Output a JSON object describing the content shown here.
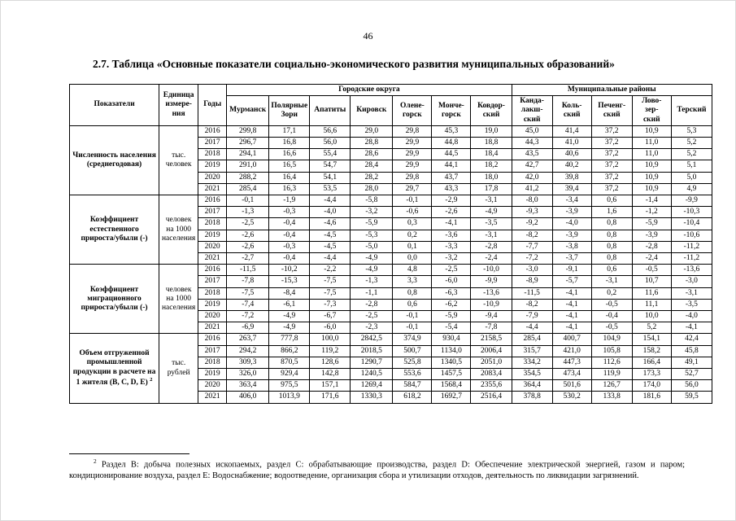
{
  "page": {
    "number": "46"
  },
  "title": "2.7. Таблица «Основные показатели социально-экономического развития муниципальных образований»",
  "table": {
    "headers": {
      "indicator": "Показатели",
      "unit": "Единица\nизмере-\nния",
      "year": "Годы",
      "group_urban": "Городские округа",
      "group_municipal": "Муниципальные районы",
      "columns": [
        "Мурманск",
        "Полярные\nЗори",
        "Апатиты",
        "Кировск",
        "Олене-\nгорск",
        "Монче-\nгорск",
        "Ковдор-\nский",
        "Канда-\nлакш-\nский",
        "Коль-\nский",
        "Печенг-\nский",
        "Лово-\nзер-\nский",
        "Терский"
      ]
    },
    "sections": [
      {
        "indicator": "Численность населения (среднегодовая)",
        "unit": "тыс. человек",
        "rows": [
          {
            "year": "2016",
            "values": [
              "299,8",
              "17,1",
              "56,6",
              "29,0",
              "29,8",
              "45,3",
              "19,0",
              "45,0",
              "41,4",
              "37,2",
              "10,9",
              "5,3"
            ]
          },
          {
            "year": "2017",
            "values": [
              "296,7",
              "16,8",
              "56,0",
              "28,8",
              "29,9",
              "44,8",
              "18,8",
              "44,3",
              "41,0",
              "37,2",
              "11,0",
              "5,2"
            ]
          },
          {
            "year": "2018",
            "values": [
              "294,1",
              "16,6",
              "55,4",
              "28,6",
              "29,9",
              "44,5",
              "18,4",
              "43,5",
              "40,6",
              "37,2",
              "11,0",
              "5,2"
            ]
          },
          {
            "year": "2019",
            "values": [
              "291,0",
              "16,5",
              "54,7",
              "28,4",
              "29,9",
              "44,1",
              "18,2",
              "42,7",
              "40,2",
              "37,2",
              "10,9",
              "5,1"
            ]
          },
          {
            "year": "2020",
            "values": [
              "288,2",
              "16,4",
              "54,1",
              "28,2",
              "29,8",
              "43,7",
              "18,0",
              "42,0",
              "39,8",
              "37,2",
              "10,9",
              "5,0"
            ]
          },
          {
            "year": "2021",
            "values": [
              "285,4",
              "16,3",
              "53,5",
              "28,0",
              "29,7",
              "43,3",
              "17,8",
              "41,2",
              "39,4",
              "37,2",
              "10,9",
              "4,9"
            ]
          }
        ]
      },
      {
        "indicator": "Коэффициент естественного прироста/убыли (-)",
        "unit": "человек на 1000 населения",
        "rows": [
          {
            "year": "2016",
            "values": [
              "-0,1",
              "-1,9",
              "-4,4",
              "-5,8",
              "-0,1",
              "-2,9",
              "-3,1",
              "-8,0",
              "-3,4",
              "0,6",
              "-1,4",
              "-9,9"
            ]
          },
          {
            "year": "2017",
            "values": [
              "-1,3",
              "-0,3",
              "-4,0",
              "-3,2",
              "-0,6",
              "-2,6",
              "-4,9",
              "-9,3",
              "-3,9",
              "1,6",
              "-1,2",
              "-10,3"
            ]
          },
          {
            "year": "2018",
            "values": [
              "-2,5",
              "-0,4",
              "-4,6",
              "-5,9",
              "0,3",
              "-4,1",
              "-3,5",
              "-9,2",
              "-4,0",
              "0,8",
              "-5,9",
              "-10,4"
            ]
          },
          {
            "year": "2019",
            "values": [
              "-2,6",
              "-0,4",
              "-4,5",
              "-5,3",
              "0,2",
              "-3,6",
              "-3,1",
              "-8,2",
              "-3,9",
              "0,8",
              "-3,9",
              "-10,6"
            ]
          },
          {
            "year": "2020",
            "values": [
              "-2,6",
              "-0,3",
              "-4,5",
              "-5,0",
              "0,1",
              "-3,3",
              "-2,8",
              "-7,7",
              "-3,8",
              "0,8",
              "-2,8",
              "-11,2"
            ]
          },
          {
            "year": "2021",
            "values": [
              "-2,7",
              "-0,4",
              "-4,4",
              "-4,9",
              "0,0",
              "-3,2",
              "-2,4",
              "-7,2",
              "-3,7",
              "0,8",
              "-2,4",
              "-11,2"
            ]
          }
        ]
      },
      {
        "indicator": "Коэффициент миграционного прироста/убыли (-)",
        "unit": "человек на 1000 населения",
        "rows": [
          {
            "year": "2016",
            "values": [
              "-11,5",
              "-10,2",
              "-2,2",
              "-4,9",
              "4,8",
              "-2,5",
              "-10,0",
              "-3,0",
              "-9,1",
              "0,6",
              "-0,5",
              "-13,6"
            ]
          },
          {
            "year": "2017",
            "values": [
              "-7,8",
              "-15,3",
              "-7,5",
              "-1,3",
              "3,3",
              "-6,0",
              "-9,9",
              "-8,9",
              "-5,7",
              "-3,1",
              "10,7",
              "-3,0"
            ]
          },
          {
            "year": "2018",
            "values": [
              "-7,5",
              "-8,4",
              "-7,5",
              "-1,1",
              "0,8",
              "-6,3",
              "-13,6",
              "-11,5",
              "-4,1",
              "0,2",
              "11,6",
              "-3,1"
            ]
          },
          {
            "year": "2019",
            "values": [
              "-7,4",
              "-6,1",
              "-7,3",
              "-2,8",
              "0,6",
              "-6,2",
              "-10,9",
              "-8,2",
              "-4,1",
              "-0,5",
              "11,1",
              "-3,5"
            ]
          },
          {
            "year": "2020",
            "values": [
              "-7,2",
              "-4,9",
              "-6,7",
              "-2,5",
              "-0,1",
              "-5,9",
              "-9,4",
              "-7,9",
              "-4,1",
              "-0,4",
              "10,0",
              "-4,0"
            ]
          },
          {
            "year": "2021",
            "values": [
              "-6,9",
              "-4,9",
              "-6,0",
              "-2,3",
              "-0,1",
              "-5,4",
              "-7,8",
              "-4,4",
              "-4,1",
              "-0,5",
              "5,2",
              "-4,1"
            ]
          }
        ]
      },
      {
        "indicator": "Объем отгруженной промышленной продукции в расчете на 1 жителя (B, C, D, E) ",
        "indicator_sup": "2",
        "unit": "тыс. рублей",
        "rows": [
          {
            "year": "2016",
            "values": [
              "263,7",
              "777,8",
              "100,0",
              "2842,5",
              "374,9",
              "930,4",
              "2158,5",
              "285,4",
              "400,7",
              "104,9",
              "154,1",
              "42,4"
            ]
          },
          {
            "year": "2017",
            "values": [
              "294,2",
              "866,2",
              "119,2",
              "2018,5",
              "500,7",
              "1134,0",
              "2006,4",
              "315,7",
              "421,0",
              "105,8",
              "158,2",
              "45,8"
            ]
          },
          {
            "year": "2018",
            "values": [
              "309,3",
              "870,5",
              "128,6",
              "1290,7",
              "525,8",
              "1340,5",
              "2051,0",
              "334,2",
              "447,3",
              "112,6",
              "166,4",
              "49,1"
            ]
          },
          {
            "year": "2019",
            "values": [
              "326,0",
              "929,4",
              "142,8",
              "1240,5",
              "553,6",
              "1457,5",
              "2083,4",
              "354,5",
              "473,4",
              "119,9",
              "173,3",
              "52,7"
            ]
          },
          {
            "year": "2020",
            "values": [
              "363,4",
              "975,5",
              "157,1",
              "1269,4",
              "584,7",
              "1568,4",
              "2355,6",
              "364,4",
              "501,6",
              "126,7",
              "174,0",
              "56,0"
            ]
          },
          {
            "year": "2021",
            "values": [
              "406,0",
              "1013,9",
              "171,6",
              "1330,3",
              "618,2",
              "1692,7",
              "2516,4",
              "378,8",
              "530,2",
              "133,8",
              "181,6",
              "59,5"
            ]
          }
        ]
      }
    ]
  },
  "footnote": {
    "sup": "2",
    "text": "Раздел В: добыча полезных ископаемых, раздел С: обрабатывающие производства, раздел D: Обеспечение электрической энергией, газом и паром; кондиционирование воздуха, раздел Е: Водоснабжение; водоотведение, организация сбора и утилизации отходов, деятельность по ликвидации загрязнений."
  }
}
